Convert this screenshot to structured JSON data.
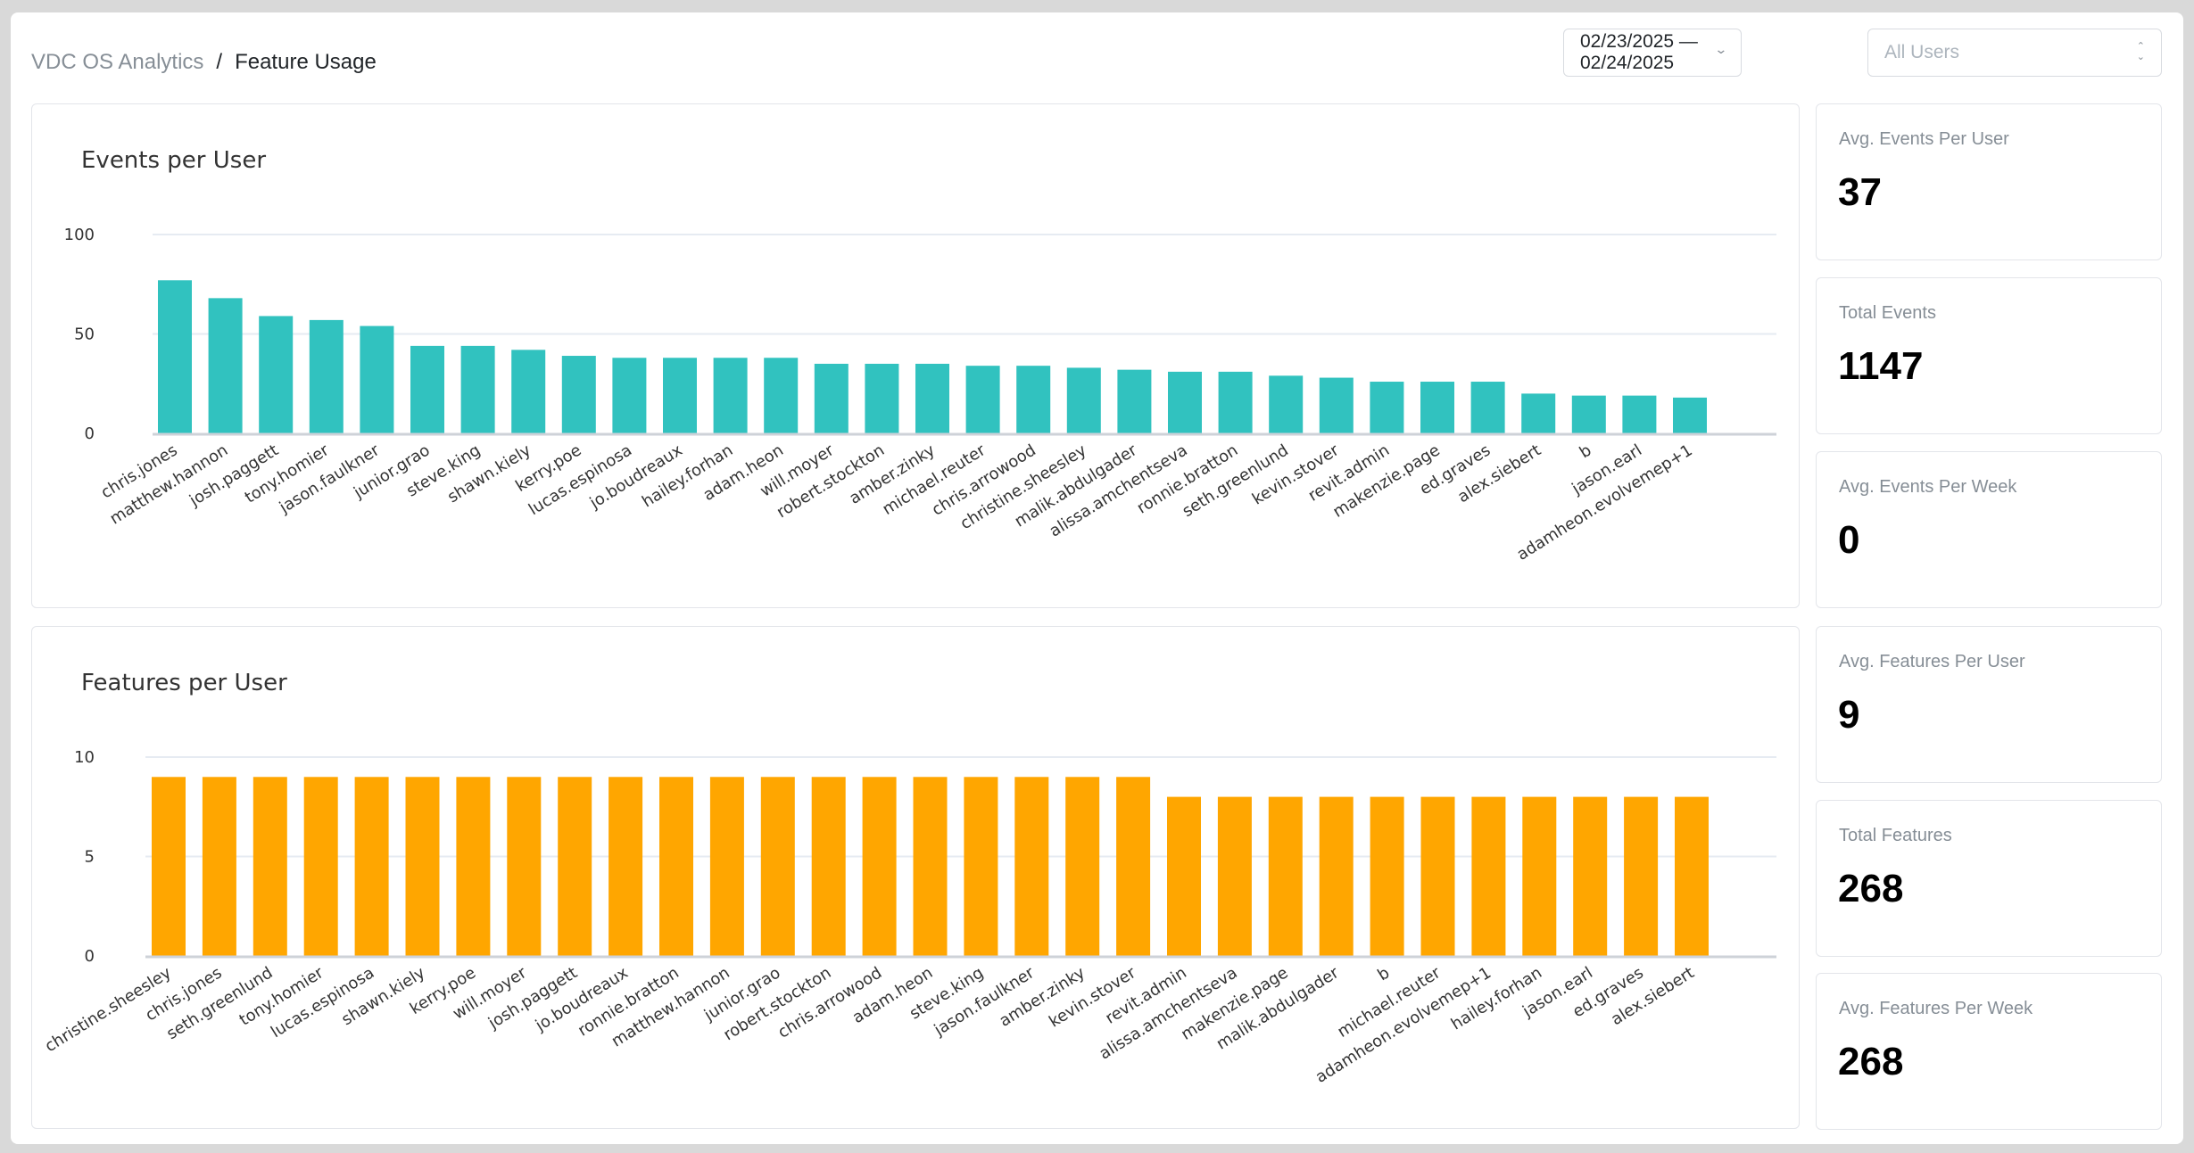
{
  "breadcrumb": {
    "root": "VDC OS Analytics",
    "separator": "/",
    "current": "Feature Usage"
  },
  "filters": {
    "date_range": "02/23/2025 — 02/24/2025",
    "user_select_placeholder": "All Users",
    "icons": {
      "date_chevron": "chevron-down-icon",
      "select_arrows": "up-down-arrows-icon"
    }
  },
  "stats": [
    {
      "label": "Avg. Events Per User",
      "value": "37"
    },
    {
      "label": "Total Events",
      "value": "1147"
    },
    {
      "label": "Avg. Events Per Week",
      "value": "0"
    },
    {
      "label": "Avg. Features Per User",
      "value": "9"
    },
    {
      "label": "Total Features",
      "value": "268"
    },
    {
      "label": "Avg. Features Per Week",
      "value": "268"
    }
  ],
  "colors": {
    "events_bar": "#31c2bf",
    "features_bar": "#ffa600",
    "grid": "#e6ebf2",
    "axis": "#ced2d8"
  },
  "chart_data": [
    {
      "type": "bar",
      "title": "Events per User",
      "xlabel": "",
      "ylabel": "",
      "ylim": [
        0,
        100
      ],
      "yticks": [
        0,
        50,
        100
      ],
      "grid": true,
      "legend": "none",
      "categories": [
        "chris.jones",
        "matthew.hannon",
        "josh.paggett",
        "tony.homier",
        "jason.faulkner",
        "junior.grao",
        "steve.king",
        "shawn.kiely",
        "kerry.poe",
        "lucas.espinosa",
        "jo.boudreaux",
        "hailey.forhan",
        "adam.heon",
        "will.moyer",
        "robert.stockton",
        "amber.zinky",
        "michael.reuter",
        "chris.arrowood",
        "christine.sheesley",
        "malik.abdulgader",
        "alissa.amchentseva",
        "ronnie.bratton",
        "seth.greenlund",
        "kevin.stover",
        "revit.admin",
        "makenzie.page",
        "ed.graves",
        "alex.siebert",
        "b",
        "jason.earl",
        "adamheon.evolvemep+1"
      ],
      "values": [
        77,
        68,
        59,
        57,
        54,
        44,
        44,
        42,
        39,
        38,
        38,
        38,
        38,
        35,
        35,
        35,
        34,
        34,
        33,
        32,
        31,
        31,
        29,
        28,
        26,
        26,
        26,
        20,
        19,
        19,
        18
      ]
    },
    {
      "type": "bar",
      "title": "Features per User",
      "xlabel": "",
      "ylabel": "",
      "ylim": [
        0,
        10
      ],
      "yticks": [
        0,
        5,
        10
      ],
      "grid": true,
      "legend": "none",
      "categories": [
        "christine.sheesley",
        "chris.jones",
        "seth.greenlund",
        "tony.homier",
        "lucas.espinosa",
        "shawn.kiely",
        "kerry.poe",
        "will.moyer",
        "josh.paggett",
        "jo.boudreaux",
        "ronnie.bratton",
        "matthew.hannon",
        "junior.grao",
        "robert.stockton",
        "chris.arrowood",
        "adam.heon",
        "steve.king",
        "jason.faulkner",
        "amber.zinky",
        "kevin.stover",
        "revit.admin",
        "alissa.amchentseva",
        "makenzie.page",
        "malik.abdulgader",
        "b",
        "michael.reuter",
        "adamheon.evolvemep+1",
        "hailey.forhan",
        "jason.earl",
        "ed.graves",
        "alex.siebert"
      ],
      "values": [
        9,
        9,
        9,
        9,
        9,
        9,
        9,
        9,
        9,
        9,
        9,
        9,
        9,
        9,
        9,
        9,
        9,
        9,
        9,
        9,
        8,
        8,
        8,
        8,
        8,
        8,
        8,
        8,
        8,
        8,
        8
      ]
    }
  ]
}
